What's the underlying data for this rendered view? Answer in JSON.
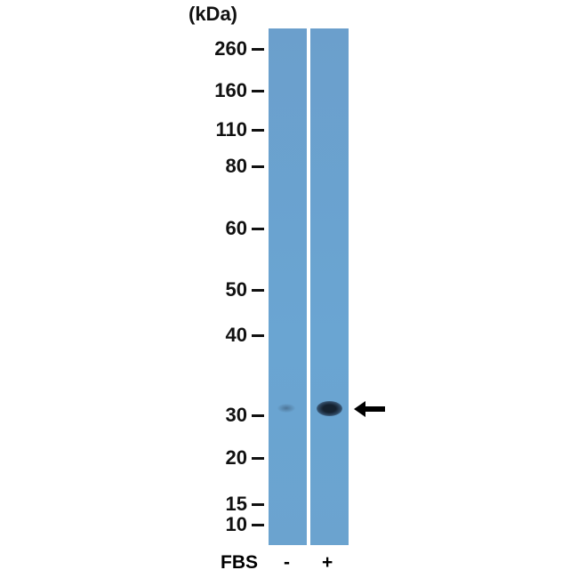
{
  "unit_label": "(kDa)",
  "markers": [
    {
      "label": "260",
      "kda": 260
    },
    {
      "label": "160",
      "kda": 160
    },
    {
      "label": "110",
      "kda": 110
    },
    {
      "label": "80",
      "kda": 80
    },
    {
      "label": "60",
      "kda": 60
    },
    {
      "label": "50",
      "kda": 50
    },
    {
      "label": "40",
      "kda": 40
    },
    {
      "label": "30",
      "kda": 30
    },
    {
      "label": "20",
      "kda": 20
    },
    {
      "label": "15",
      "kda": 15
    },
    {
      "label": "10",
      "kda": 10
    }
  ],
  "condition_label": "FBS",
  "lanes": [
    {
      "label": "-",
      "band_intensity": "weak"
    },
    {
      "label": "+",
      "band_intensity": "strong"
    }
  ],
  "colors": {
    "membrane": "#6aa4d0",
    "band": "#1a2a3a"
  },
  "arrow_icon": "left-arrow-icon"
}
